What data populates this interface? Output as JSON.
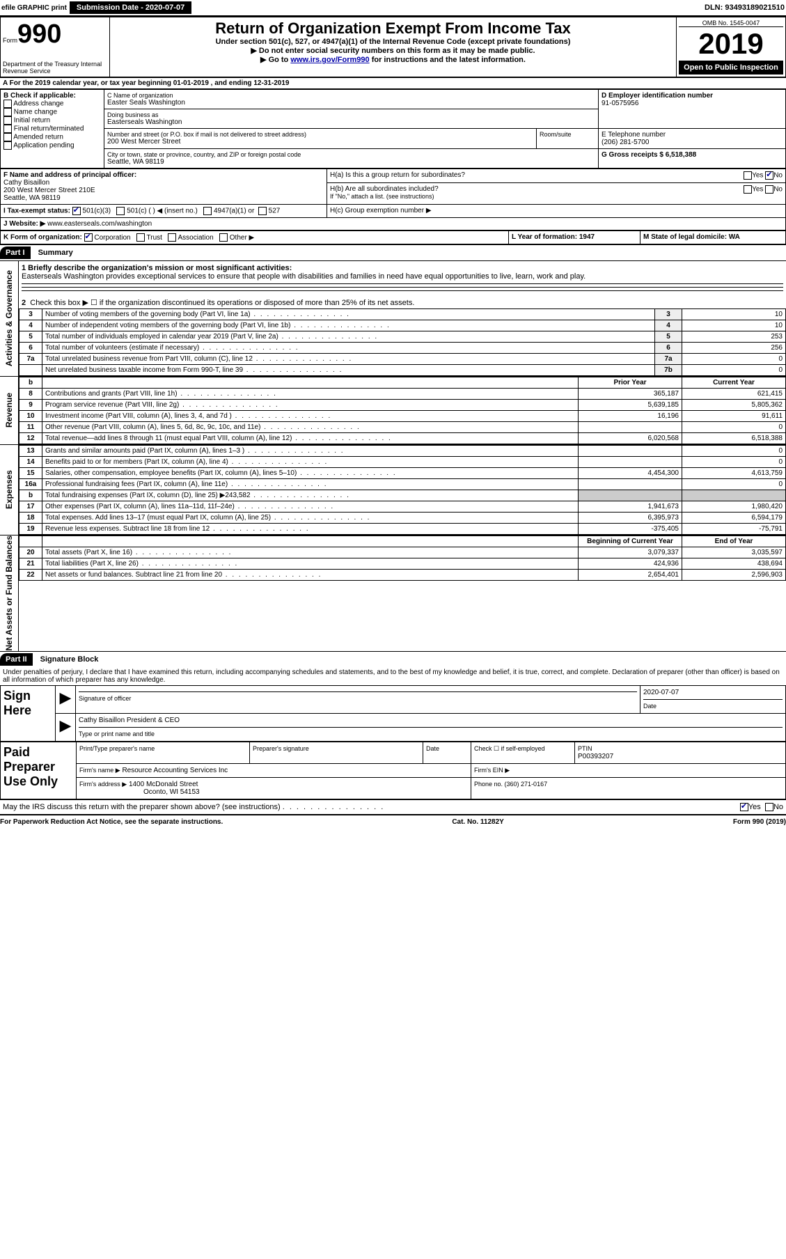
{
  "top_bar": {
    "efile_text": "efile GRAPHIC print",
    "submission_label": "Submission Date - 2020-07-07",
    "dln_label": "DLN: 93493189021510"
  },
  "header": {
    "form_word": "Form",
    "form_number": "990",
    "dept": "Department of the Treasury\nInternal Revenue Service",
    "main_title": "Return of Organization Exempt From Income Tax",
    "under_section": "Under section 501(c), 527, or 4947(a)(1) of the Internal Revenue Code (except private foundations)",
    "ssn_warning": "▶ Do not enter social security numbers on this form as it may be made public.",
    "irs_link_pre": "▶ Go to ",
    "irs_link": "www.irs.gov/Form990",
    "irs_link_post": " for instructions and the latest information.",
    "omb": "OMB No. 1545-0047",
    "year": "2019",
    "open_public": "Open to Public Inspection"
  },
  "section_a": {
    "line": "A For the 2019 calendar year, or tax year beginning 01-01-2019   , and ending 12-31-2019"
  },
  "section_b": {
    "title": "B Check if applicable:",
    "items": [
      "Address change",
      "Name change",
      "Initial return",
      "Final return/terminated",
      "Amended return",
      "Application pending"
    ]
  },
  "section_c": {
    "name_label": "C Name of organization",
    "name": "Easter Seals Washington",
    "dba_label": "Doing business as",
    "dba": "Easterseals Washington",
    "street_label": "Number and street (or P.O. box if mail is not delivered to street address)",
    "room_label": "Room/suite",
    "street": "200 West Mercer Street",
    "city_label": "City or town, state or province, country, and ZIP or foreign postal code",
    "city": "Seattle, WA  98119"
  },
  "section_d": {
    "label": "D Employer identification number",
    "value": "91-0575956"
  },
  "section_e": {
    "label": "E Telephone number",
    "value": "(206) 281-5700"
  },
  "section_f": {
    "label": "F  Name and address of principal officer:",
    "name": "Cathy Bisaillon",
    "addr1": "200 West Mercer Street 210E",
    "addr2": "Seattle, WA  98119"
  },
  "section_g": {
    "label": "G Gross receipts $ 6,518,388"
  },
  "section_h": {
    "ha": "H(a)  Is this a group return for subordinates?",
    "hb": "H(b)  Are all subordinates included?",
    "hb_note": "If \"No,\" attach a list. (see instructions)",
    "hc": "H(c)  Group exemption number ▶"
  },
  "section_i": {
    "label": "I   Tax-exempt status:",
    "opt1": "501(c)(3)",
    "opt2": "501(c) (  ) ◀ (insert no.)",
    "opt3": "4947(a)(1) or",
    "opt4": "527"
  },
  "section_j": {
    "label": "J   Website: ▶",
    "value": "www.easterseals.com/washington"
  },
  "section_k": {
    "label": "K Form of organization:",
    "opts": [
      "Corporation",
      "Trust",
      "Association",
      "Other ▶"
    ]
  },
  "section_l": {
    "label": "L Year of formation: 1947"
  },
  "section_m": {
    "label": "M State of legal domicile: WA"
  },
  "part1": {
    "header": "Part I",
    "title": "Summary",
    "line1_label": "1  Briefly describe the organization's mission or most significant activities:",
    "line1_text": "Easterseals Washington provides exceptional services to ensure that people with disabilities and families in need have equal opportunities to live, learn, work and play.",
    "line2": "Check this box ▶ ☐  if the organization discontinued its operations or disposed of more than 25% of its net assets.",
    "activities_rows": [
      {
        "n": "3",
        "label": "Number of voting members of the governing body (Part VI, line 1a)",
        "box": "3",
        "val": "10"
      },
      {
        "n": "4",
        "label": "Number of independent voting members of the governing body (Part VI, line 1b)",
        "box": "4",
        "val": "10"
      },
      {
        "n": "5",
        "label": "Total number of individuals employed in calendar year 2019 (Part V, line 2a)",
        "box": "5",
        "val": "253"
      },
      {
        "n": "6",
        "label": "Total number of volunteers (estimate if necessary)",
        "box": "6",
        "val": "256"
      },
      {
        "n": "7a",
        "label": "Total unrelated business revenue from Part VIII, column (C), line 12",
        "box": "7a",
        "val": "0"
      },
      {
        "n": "",
        "label": "Net unrelated business taxable income from Form 990-T, line 39",
        "box": "7b",
        "val": "0"
      }
    ],
    "b_marker": "b",
    "prior_year_label": "Prior Year",
    "current_year_label": "Current Year",
    "revenue_rows": [
      {
        "n": "8",
        "label": "Contributions and grants (Part VIII, line 1h)",
        "prior": "365,187",
        "curr": "621,415"
      },
      {
        "n": "9",
        "label": "Program service revenue (Part VIII, line 2g)",
        "prior": "5,639,185",
        "curr": "5,805,362"
      },
      {
        "n": "10",
        "label": "Investment income (Part VIII, column (A), lines 3, 4, and 7d )",
        "prior": "16,196",
        "curr": "91,611"
      },
      {
        "n": "11",
        "label": "Other revenue (Part VIII, column (A), lines 5, 6d, 8c, 9c, 10c, and 11e)",
        "prior": "",
        "curr": "0"
      },
      {
        "n": "12",
        "label": "Total revenue—add lines 8 through 11 (must equal Part VIII, column (A), line 12)",
        "prior": "6,020,568",
        "curr": "6,518,388"
      }
    ],
    "expense_rows": [
      {
        "n": "13",
        "label": "Grants and similar amounts paid (Part IX, column (A), lines 1–3 )",
        "prior": "",
        "curr": "0"
      },
      {
        "n": "14",
        "label": "Benefits paid to or for members (Part IX, column (A), line 4)",
        "prior": "",
        "curr": "0"
      },
      {
        "n": "15",
        "label": "Salaries, other compensation, employee benefits (Part IX, column (A), lines 5–10)",
        "prior": "4,454,300",
        "curr": "4,613,759"
      },
      {
        "n": "16a",
        "label": "Professional fundraising fees (Part IX, column (A), line 11e)",
        "prior": "",
        "curr": "0"
      },
      {
        "n": "b",
        "label": "Total fundraising expenses (Part IX, column (D), line 25) ▶243,582",
        "prior": "SHADE",
        "curr": "SHADE"
      },
      {
        "n": "17",
        "label": "Other expenses (Part IX, column (A), lines 11a–11d, 11f–24e)",
        "prior": "1,941,673",
        "curr": "1,980,420"
      },
      {
        "n": "18",
        "label": "Total expenses. Add lines 13–17 (must equal Part IX, column (A), line 25)",
        "prior": "6,395,973",
        "curr": "6,594,179"
      },
      {
        "n": "19",
        "label": "Revenue less expenses. Subtract line 18 from line 12",
        "prior": "-375,405",
        "curr": "-75,791"
      }
    ],
    "begin_year_label": "Beginning of Current Year",
    "end_year_label": "End of Year",
    "net_rows": [
      {
        "n": "20",
        "label": "Total assets (Part X, line 16)",
        "prior": "3,079,337",
        "curr": "3,035,597"
      },
      {
        "n": "21",
        "label": "Total liabilities (Part X, line 26)",
        "prior": "424,936",
        "curr": "438,694"
      },
      {
        "n": "22",
        "label": "Net assets or fund balances. Subtract line 21 from line 20",
        "prior": "2,654,401",
        "curr": "2,596,903"
      }
    ],
    "activities_vert": "Activities & Governance",
    "revenue_vert": "Revenue",
    "expenses_vert": "Expenses",
    "net_vert": "Net Assets or Fund Balances"
  },
  "part2": {
    "header": "Part II",
    "title": "Signature Block",
    "declaration": "Under penalties of perjury, I declare that I have examined this return, including accompanying schedules and statements, and to the best of my knowledge and belief, it is true, correct, and complete. Declaration of preparer (other than officer) is based on all information of which preparer has any knowledge.",
    "sign_here": "Sign Here",
    "sig_officer_label": "Signature of officer",
    "sig_date": "2020-07-07",
    "sig_date_label": "Date",
    "sig_name": "Cathy Bisaillon President & CEO",
    "sig_name_label": "Type or print name and title",
    "paid_label": "Paid Preparer Use Only",
    "prep_name_label": "Print/Type preparer's name",
    "prep_sig_label": "Preparer's signature",
    "prep_date_label": "Date",
    "self_emp_label": "Check ☐ if self-employed",
    "ptin_label": "PTIN",
    "ptin": "P00393207",
    "firm_name_label": "Firm's name   ▶",
    "firm_name": "Resource Accounting Services Inc",
    "firm_ein_label": "Firm's EIN ▶",
    "firm_addr_label": "Firm's address ▶",
    "firm_addr1": "1400 McDonald Street",
    "firm_addr2": "Oconto, WI  54153",
    "firm_phone_label": "Phone no. (360) 271-0167",
    "discuss": "May the IRS discuss this return with the preparer shown above? (see instructions)",
    "discuss_yes": "Yes",
    "discuss_no": "No"
  },
  "footer": {
    "paperwork": "For Paperwork Reduction Act Notice, see the separate instructions.",
    "cat": "Cat. No. 11282Y",
    "form": "Form 990 (2019)"
  },
  "colors": {
    "link": "#0000aa",
    "black": "#000000",
    "shade": "#cccccc"
  }
}
